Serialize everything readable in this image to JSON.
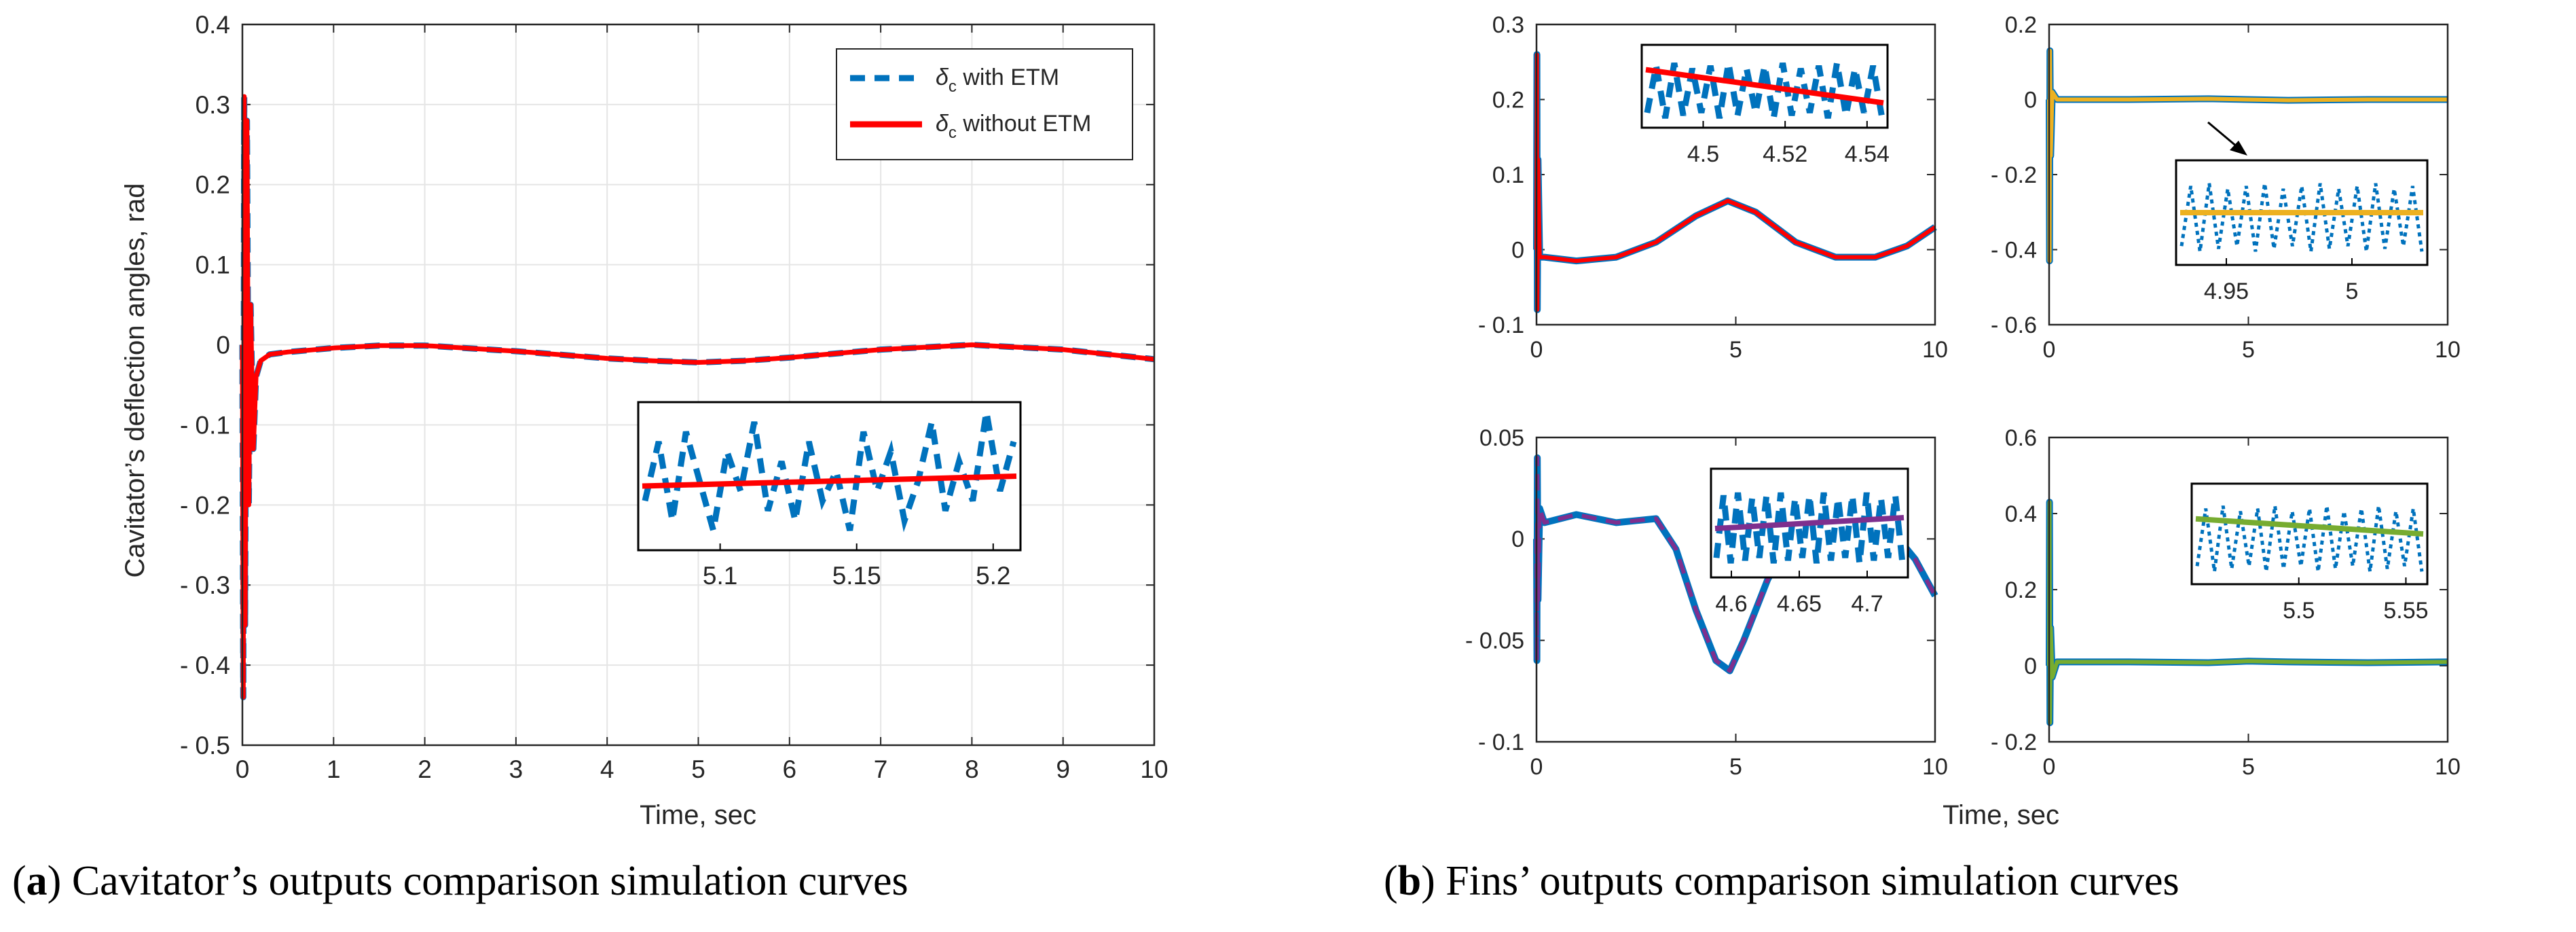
{
  "captions": {
    "a": {
      "letter": "a",
      "text": "Cavitator’s outputs comparison simulation curves"
    },
    "b": {
      "letter": "b",
      "text": "Fins’ outputs comparison simulation curves"
    }
  },
  "colors": {
    "with_etm": "#0072BD",
    "without_etm": "#FF0000",
    "fin1": "#FF0000",
    "fin2": "#EDB120",
    "fin3": "#7E2F8E",
    "fin4": "#77AC30",
    "grid": "#e5e5e5",
    "axis": "#262626"
  },
  "chart_data": [
    {
      "id": "a",
      "type": "line",
      "xlabel": "Time, sec",
      "ylabel": "Cavitator’s deflection angles, rad",
      "xlim": [
        0,
        10
      ],
      "ylim": [
        -0.5,
        0.4
      ],
      "grid": true,
      "legend": "top-right",
      "xticks": [
        "0",
        "1",
        "2",
        "3",
        "4",
        "5",
        "6",
        "7",
        "8",
        "9",
        "10"
      ],
      "yticks": [
        "0.4",
        "0.3",
        "0.2",
        "0.1",
        "0",
        "- 0.1",
        "- 0.2",
        "- 0.3",
        "- 0.4",
        "- 0.5"
      ],
      "series": [
        {
          "name": "δc with ETM",
          "legend_symbol": "δ",
          "legend_sub": "c",
          "legend_rest": "with ETM",
          "style": "dashed",
          "x": [
            0,
            0.01,
            0.02,
            0.03,
            0.05,
            0.07,
            0.09,
            0.12,
            0.15,
            0.2,
            0.3,
            0.5,
            1,
            1.5,
            2,
            3,
            4,
            4.5,
            5,
            5.5,
            6,
            7,
            8,
            9,
            10
          ],
          "y": [
            0,
            -0.44,
            0.31,
            -0.35,
            0.28,
            -0.2,
            0.05,
            -0.13,
            -0.04,
            -0.02,
            -0.012,
            -0.009,
            -0.004,
            -0.001,
            -0.001,
            -0.008,
            -0.017,
            -0.02,
            -0.022,
            -0.02,
            -0.016,
            -0.006,
            0,
            -0.006,
            -0.018
          ]
        },
        {
          "name": "δc without ETM",
          "legend_symbol": "δ",
          "legend_sub": "c",
          "legend_rest": "without ETM",
          "style": "solid",
          "x": [
            0,
            0.01,
            0.02,
            0.03,
            0.05,
            0.07,
            0.09,
            0.12,
            0.15,
            0.2,
            0.3,
            0.5,
            1,
            1.5,
            2,
            3,
            4,
            4.5,
            5,
            5.5,
            6,
            7,
            8,
            9,
            10
          ],
          "y": [
            0,
            -0.44,
            0.31,
            -0.35,
            0.28,
            -0.2,
            0.05,
            -0.13,
            -0.04,
            -0.02,
            -0.012,
            -0.009,
            -0.004,
            -0.001,
            -0.001,
            -0.008,
            -0.017,
            -0.02,
            -0.022,
            -0.02,
            -0.016,
            -0.006,
            0,
            -0.006,
            -0.018
          ]
        }
      ],
      "inset": {
        "xlim": [
          5.07,
          5.21
        ],
        "ylim": [
          -0.25,
          -0.1
        ],
        "xticks": [
          "5.1",
          "5.15",
          "5.2"
        ],
        "solid_y": [
          -0.185,
          -0.175
        ],
        "dashed_y": [
          -0.2,
          -0.14,
          -0.22,
          -0.13,
          -0.18,
          -0.23,
          -0.15,
          -0.19,
          -0.12,
          -0.21,
          -0.16,
          -0.22,
          -0.14,
          -0.2,
          -0.17,
          -0.23,
          -0.13,
          -0.19,
          -0.15,
          -0.22,
          -0.18,
          -0.12,
          -0.21,
          -0.16,
          -0.2,
          -0.11,
          -0.19,
          -0.14
        ]
      }
    },
    {
      "id": "b1",
      "type": "line",
      "xlim": [
        0,
        10
      ],
      "ylim": [
        -0.1,
        0.3
      ],
      "xticks": [
        "0",
        "5",
        "10"
      ],
      "yticks": [
        "0.3",
        "0.2",
        "0.1",
        "0",
        "- 0.1"
      ],
      "series": [
        {
          "style": "solid",
          "x": [
            0,
            0.01,
            0.02,
            0.04,
            0.08,
            0.2,
            1,
            2,
            3,
            4,
            4.8,
            5.5,
            6.5,
            7.5,
            8.5,
            9.3,
            10
          ],
          "y": [
            0,
            0.26,
            -0.08,
            0.12,
            -0.01,
            -0.01,
            -0.015,
            -0.01,
            0.01,
            0.045,
            0.065,
            0.05,
            0.01,
            -0.01,
            -0.01,
            0.005,
            0.03
          ]
        }
      ],
      "inset": {
        "xlim": [
          4.485,
          4.545
        ],
        "xticks": [
          "4.5",
          "4.52",
          "4.54"
        ],
        "solid_y": [
          0.3,
          0.7
        ]
      }
    },
    {
      "id": "b2",
      "type": "line",
      "xlim": [
        0,
        10
      ],
      "ylim": [
        -0.6,
        0.2
      ],
      "xticks": [
        "0",
        "5",
        "10"
      ],
      "yticks": [
        "0.2",
        "0",
        "- 0.2",
        "- 0.4",
        "- 0.6"
      ],
      "series": [
        {
          "style": "solid",
          "x": [
            0,
            0.01,
            0.02,
            0.04,
            0.08,
            0.2,
            2,
            4,
            6,
            8,
            10
          ],
          "y": [
            0,
            -0.43,
            0.13,
            -0.15,
            0.02,
            0,
            0,
            0.002,
            -0.002,
            0,
            0
          ]
        }
      ],
      "inset": {
        "xlim": [
          4.93,
          5.03
        ],
        "xticks": [
          "4.95",
          "5"
        ],
        "solid_y": [
          0.5,
          0.5
        ]
      }
    },
    {
      "id": "b3",
      "type": "line",
      "xlim": [
        0,
        10
      ],
      "ylim": [
        -0.1,
        0.05
      ],
      "xticks": [
        "0",
        "5",
        "10"
      ],
      "yticks": [
        "0.05",
        "0",
        "- 0.05",
        "- 0.1"
      ],
      "series": [
        {
          "style": "dashed",
          "x": [
            0,
            0.01,
            0.02,
            0.04,
            0.08,
            0.2,
            1,
            2,
            3,
            3.5,
            4,
            4.5,
            4.85,
            5.2,
            5.8,
            6.5,
            7.2,
            8,
            9,
            9.5,
            10
          ],
          "y": [
            0,
            -0.06,
            0.04,
            -0.03,
            0.015,
            0.008,
            0.012,
            0.008,
            0.01,
            -0.005,
            -0.035,
            -0.06,
            -0.065,
            -0.05,
            -0.02,
            0.005,
            0.01,
            0.005,
            0.002,
            -0.01,
            -0.028
          ]
        }
      ],
      "inset": {
        "xlim": [
          4.585,
          4.73
        ],
        "xticks": [
          "4.6",
          "4.65",
          "4.7"
        ],
        "solid_y": [
          0.55,
          0.45
        ]
      }
    },
    {
      "id": "b4",
      "type": "line",
      "xlim": [
        0,
        10
      ],
      "ylim": [
        -0.2,
        0.6
      ],
      "xticks": [
        "0",
        "5",
        "10"
      ],
      "yticks": [
        "0.6",
        "0.4",
        "0.2",
        "0",
        "- 0.2"
      ],
      "series": [
        {
          "style": "solid",
          "x": [
            0,
            0.01,
            0.02,
            0.04,
            0.08,
            0.2,
            2,
            4,
            5,
            6,
            8,
            10
          ],
          "y": [
            0,
            0.43,
            -0.15,
            0.1,
            -0.03,
            0.01,
            0.01,
            0.008,
            0.012,
            0.01,
            0.008,
            0.01
          ]
        }
      ],
      "inset": {
        "xlim": [
          5.45,
          5.56
        ],
        "xticks": [
          "5.5",
          "5.55"
        ],
        "solid_y": [
          0.35,
          0.5
        ]
      }
    }
  ],
  "shared_xlabel_b": "Time, sec"
}
